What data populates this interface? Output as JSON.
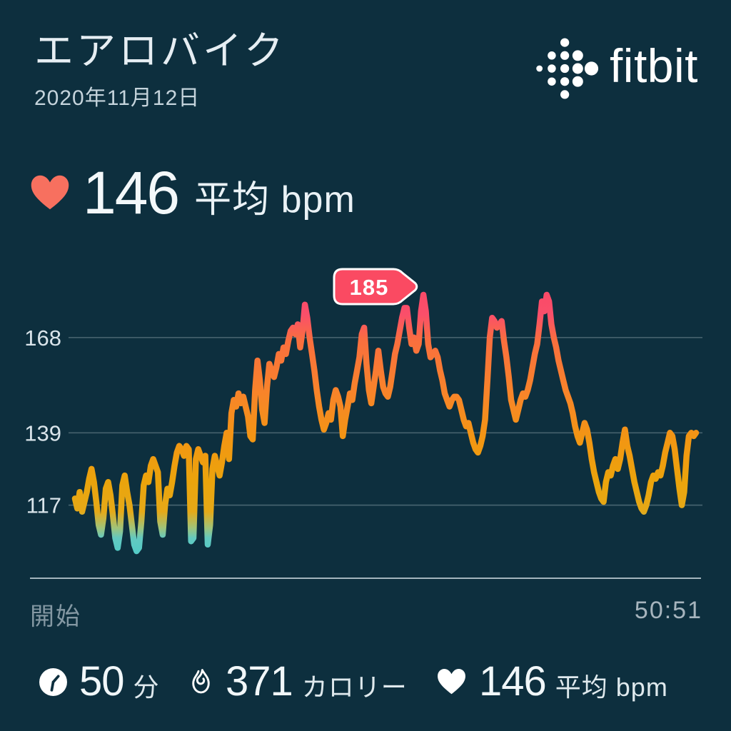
{
  "page": {
    "background": "#0d2f3e"
  },
  "header": {
    "title": "エアロバイク",
    "date": "2020年11月12日",
    "brand_wordmark": "fitbit"
  },
  "summary": {
    "avg_value": "146",
    "avg_unit": "平均 bpm",
    "heart_color": "#f7705f"
  },
  "chart_data": {
    "type": "line",
    "x_start_label": "開始",
    "x_end_label": "50:51",
    "xlim_minutes": [
      0,
      50.85
    ],
    "yticks": [
      168,
      139,
      117
    ],
    "ylim": [
      103,
      186
    ],
    "grid": true,
    "max_badge_label": "185",
    "badge_color": "#fa4a62",
    "line_gradient": [
      {
        "bpm": 186,
        "color": "#fb4767"
      },
      {
        "bpm": 175,
        "color": "#fa4f6a"
      },
      {
        "bpm": 167,
        "color": "#f96f3e"
      },
      {
        "bpm": 152,
        "color": "#f8832b"
      },
      {
        "bpm": 137,
        "color": "#f29613"
      },
      {
        "bpm": 124,
        "color": "#eba40c"
      },
      {
        "bpm": 115,
        "color": "#e5a918"
      },
      {
        "bpm": 110,
        "color": "#9fc47b"
      },
      {
        "bpm": 107,
        "color": "#63c9c0"
      },
      {
        "bpm": 103,
        "color": "#55cbc6"
      }
    ],
    "series": [
      {
        "name": "heart_rate_bpm",
        "values": [
          119,
          116,
          121,
          115,
          118,
          121,
          125,
          128,
          124,
          118,
          111,
          108,
          113,
          122,
          124,
          120,
          114,
          107,
          104,
          109,
          123,
          126,
          121,
          117,
          111,
          105,
          103,
          104,
          112,
          123,
          126,
          124,
          129,
          131,
          129,
          127,
          112,
          108,
          117,
          122,
          120,
          124,
          129,
          133,
          135,
          134,
          132,
          135,
          134,
          106,
          107,
          131,
          134,
          132,
          130,
          132,
          105,
          111,
          128,
          132,
          129,
          126,
          130,
          135,
          139,
          131,
          145,
          149,
          147,
          151,
          148,
          150,
          147,
          144,
          138,
          137,
          152,
          161,
          155,
          146,
          142,
          153,
          160,
          158,
          156,
          159,
          163,
          161,
          165,
          163,
          167,
          170,
          171,
          169,
          172,
          165,
          170,
          178,
          174,
          168,
          163,
          158,
          152,
          147,
          143,
          140,
          142,
          145,
          143,
          149,
          152,
          150,
          147,
          138,
          143,
          147,
          151,
          149,
          154,
          158,
          162,
          169,
          171,
          160,
          152,
          148,
          153,
          158,
          164,
          158,
          153,
          151,
          150,
          153,
          158,
          163,
          166,
          170,
          174,
          177,
          177,
          171,
          166,
          168,
          164,
          166,
          176,
          181,
          176,
          166,
          162,
          163,
          164,
          162,
          158,
          155,
          151,
          149,
          147,
          149,
          150,
          150,
          149,
          146,
          143,
          141,
          142,
          139,
          136,
          134,
          133,
          135,
          138,
          143,
          155,
          168,
          174,
          173,
          171,
          172,
          173,
          167,
          162,
          156,
          149,
          146,
          143,
          146,
          149,
          151,
          150,
          152,
          155,
          159,
          163,
          166,
          172,
          179,
          176,
          181,
          179,
          172,
          168,
          165,
          161,
          158,
          155,
          152,
          150,
          148,
          145,
          141,
          138,
          136,
          139,
          142,
          140,
          136,
          131,
          127,
          124,
          121,
          119,
          118,
          124,
          127,
          126,
          129,
          131,
          128,
          131,
          136,
          140,
          135,
          132,
          128,
          124,
          121,
          118,
          116,
          115,
          117,
          120,
          124,
          126,
          125,
          127,
          126,
          129,
          133,
          136,
          139,
          138,
          134,
          128,
          122,
          117,
          121,
          132,
          138,
          139,
          138,
          139
        ]
      }
    ]
  },
  "stats": [
    {
      "icon": "clock",
      "value": "50",
      "unit": "分"
    },
    {
      "icon": "flame",
      "value": "371",
      "unit": "カロリー"
    },
    {
      "icon": "heart",
      "value": "146",
      "unit": "平均 bpm"
    }
  ]
}
